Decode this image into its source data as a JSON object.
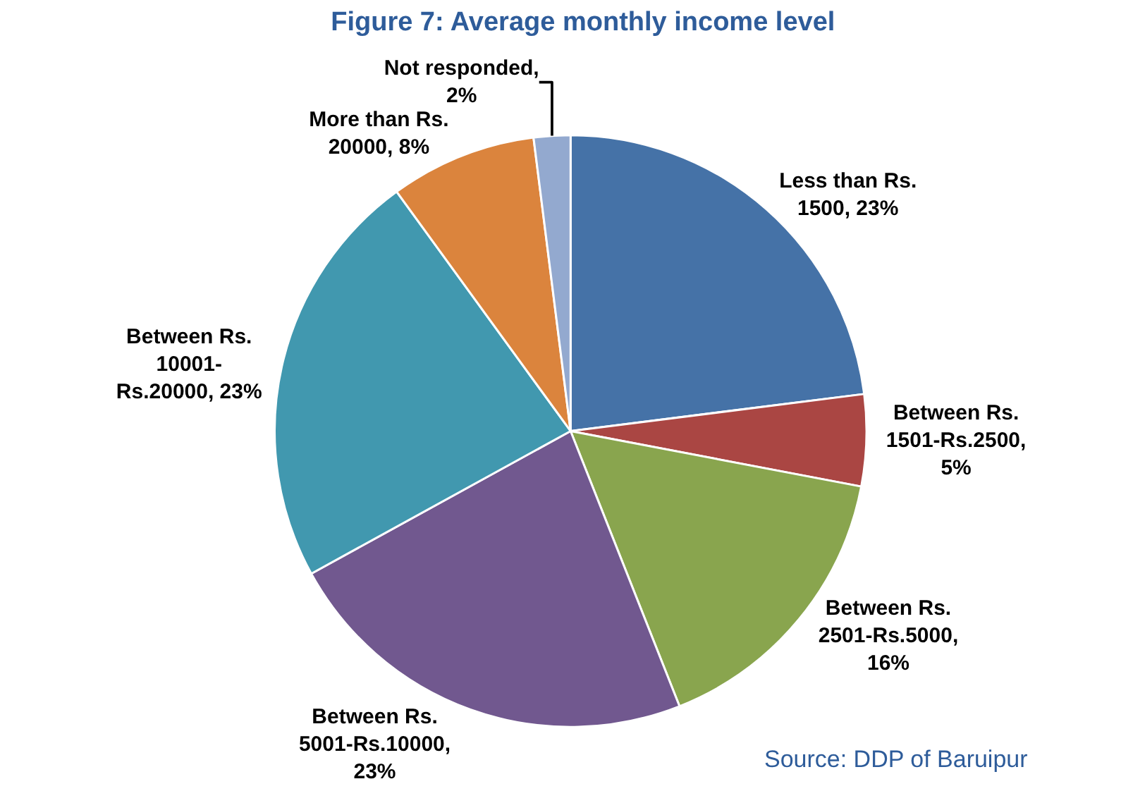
{
  "chart_data": {
    "type": "pie",
    "title": "Figure 7: Average monthly income level",
    "categories": [
      "Less than Rs. 1500, 23%",
      "Between Rs. 1501-Rs.2500, 5%",
      "Between Rs. 2501-Rs.5000, 16%",
      "Between Rs. 5001-Rs.10000, 23%",
      "Between Rs. 10001- Rs.20000, 23%",
      "More than Rs. 20000, 8%",
      "Not responded, 2%"
    ],
    "values": [
      23,
      5,
      16,
      23,
      23,
      8,
      2
    ],
    "colors": [
      "#4572a7",
      "#aa4643",
      "#89a54e",
      "#71588f",
      "#4198af",
      "#db843d",
      "#93a9cf"
    ],
    "annotations": [
      "Source: DDP of Baruipur"
    ],
    "legend": false
  }
}
